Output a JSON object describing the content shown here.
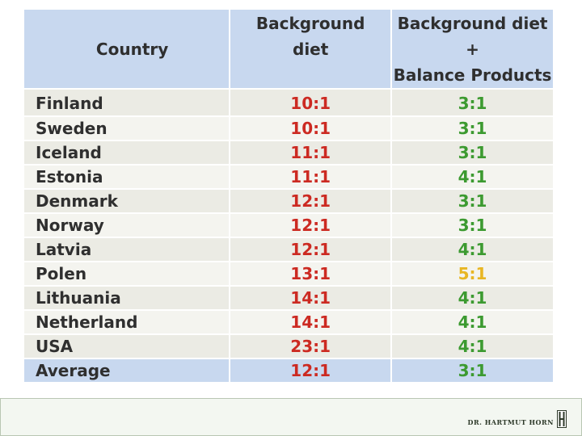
{
  "table": {
    "headers": {
      "country": "Country",
      "background_line1": "Background",
      "background_line2": "diet",
      "balance_line1": "Background diet",
      "balance_line2": "+",
      "balance_line3": "Balance Products"
    },
    "rows": [
      {
        "country": "Finland",
        "background": "10:1",
        "balance": "3:1",
        "balance_color": "green"
      },
      {
        "country": "Sweden",
        "background": "10:1",
        "balance": "3:1",
        "balance_color": "green"
      },
      {
        "country": "Iceland",
        "background": "11:1",
        "balance": "3:1",
        "balance_color": "green"
      },
      {
        "country": "Estonia",
        "background": "11:1",
        "balance": "4:1",
        "balance_color": "green"
      },
      {
        "country": "Denmark",
        "background": "12:1",
        "balance": "3:1",
        "balance_color": "green"
      },
      {
        "country": "Norway",
        "background": "12:1",
        "balance": "3:1",
        "balance_color": "green"
      },
      {
        "country": "Latvia",
        "background": "12:1",
        "balance": "4:1",
        "balance_color": "green"
      },
      {
        "country": "Polen",
        "background": "13:1",
        "balance": "5:1",
        "balance_color": "yellow"
      },
      {
        "country": "Lithuania",
        "background": "14:1",
        "balance": "4:1",
        "balance_color": "green"
      },
      {
        "country": "Netherland",
        "background": "14:1",
        "balance": "4:1",
        "balance_color": "green"
      },
      {
        "country": "USA",
        "background": "23:1",
        "balance": "4:1",
        "balance_color": "green"
      }
    ],
    "average": {
      "country": "Average",
      "background": "12:1",
      "balance": "3:1"
    }
  },
  "colors": {
    "background_values": "#cc2a22",
    "balance_values": "#3c9a30",
    "highlight_value": "#e8b623",
    "header_fill": "#c8d8ef"
  },
  "footer": {
    "logo_text": "DR. HARTMUT HORN"
  }
}
